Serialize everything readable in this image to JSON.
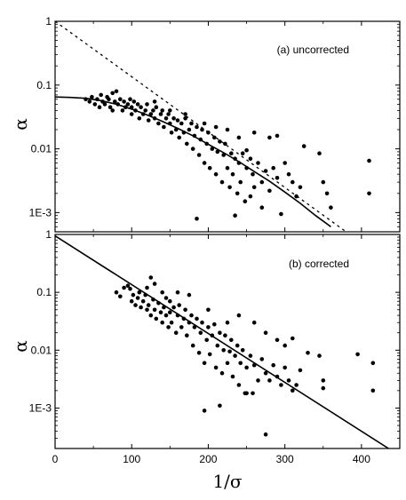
{
  "chart_data": {
    "type": "scatter",
    "xlabel": "1/σ",
    "xlim": [
      0,
      450
    ],
    "x_ticks": [
      {
        "value": 0,
        "label": "0"
      },
      {
        "value": 100,
        "label": "100"
      },
      {
        "value": 200,
        "label": "200"
      },
      {
        "value": 300,
        "label": "300"
      },
      {
        "value": 400,
        "label": "400"
      }
    ],
    "colors": {
      "points": "#000000",
      "lines": "#000000",
      "frame": "#000000"
    },
    "panels": [
      {
        "id": "a",
        "annotation": "(a) uncorrected",
        "ylabel": "α",
        "y_scale": "log",
        "ylim": [
          0.0005,
          1
        ],
        "y_ticks": [
          {
            "value": 1,
            "label": "1"
          },
          {
            "value": 0.1,
            "label": "0.1"
          },
          {
            "value": 0.01,
            "label": "0.01"
          },
          {
            "value": 0.001,
            "label": "1E-3"
          }
        ],
        "solid_curve": {
          "x": [
            0,
            20,
            40,
            60,
            80,
            100,
            120,
            140,
            160,
            180,
            200,
            220,
            240,
            260,
            280,
            300,
            320,
            340,
            360
          ],
          "y": [
            0.065,
            0.064,
            0.062,
            0.057,
            0.05,
            0.042,
            0.034,
            0.027,
            0.021,
            0.016,
            0.0118,
            0.0087,
            0.0063,
            0.0044,
            0.0031,
            0.0021,
            0.0014,
            0.0009,
            0.0006
          ]
        },
        "dashed_line": {
          "x": [
            0,
            380
          ],
          "y": [
            1.0,
            0.0005
          ]
        },
        "points": [
          [
            40,
            0.06
          ],
          [
            45,
            0.055
          ],
          [
            48,
            0.065
          ],
          [
            52,
            0.05
          ],
          [
            55,
            0.06
          ],
          [
            58,
            0.045
          ],
          [
            60,
            0.07
          ],
          [
            62,
            0.055
          ],
          [
            65,
            0.05
          ],
          [
            68,
            0.065
          ],
          [
            70,
            0.06
          ],
          [
            72,
            0.045
          ],
          [
            75,
            0.075
          ],
          [
            75,
            0.04
          ],
          [
            78,
            0.055
          ],
          [
            80,
            0.08
          ],
          [
            82,
            0.05
          ],
          [
            85,
            0.06
          ],
          [
            88,
            0.04
          ],
          [
            90,
            0.055
          ],
          [
            92,
            0.045
          ],
          [
            95,
            0.05
          ],
          [
            98,
            0.06
          ],
          [
            100,
            0.035
          ],
          [
            100,
            0.045
          ],
          [
            103,
            0.055
          ],
          [
            105,
            0.04
          ],
          [
            108,
            0.05
          ],
          [
            110,
            0.03
          ],
          [
            112,
            0.045
          ],
          [
            115,
            0.035
          ],
          [
            118,
            0.04
          ],
          [
            120,
            0.05
          ],
          [
            122,
            0.028
          ],
          [
            125,
            0.035
          ],
          [
            128,
            0.04
          ],
          [
            130,
            0.03
          ],
          [
            132,
            0.045
          ],
          [
            135,
            0.025
          ],
          [
            138,
            0.035
          ],
          [
            140,
            0.04
          ],
          [
            142,
            0.022
          ],
          [
            145,
            0.03
          ],
          [
            148,
            0.035
          ],
          [
            150,
            0.025
          ],
          [
            152,
            0.018
          ],
          [
            155,
            0.03
          ],
          [
            158,
            0.02
          ],
          [
            160,
            0.028
          ],
          [
            162,
            0.015
          ],
          [
            165,
            0.025
          ],
          [
            168,
            0.018
          ],
          [
            170,
            0.03
          ],
          [
            172,
            0.012
          ],
          [
            175,
            0.02
          ],
          [
            178,
            0.025
          ],
          [
            180,
            0.01
          ],
          [
            182,
            0.016
          ],
          [
            185,
            0.022
          ],
          [
            188,
            0.008
          ],
          [
            190,
            0.014
          ],
          [
            192,
            0.02
          ],
          [
            195,
            0.006
          ],
          [
            198,
            0.012
          ],
          [
            200,
            0.018
          ],
          [
            202,
            0.005
          ],
          [
            205,
            0.01
          ],
          [
            208,
            0.015
          ],
          [
            210,
            0.004
          ],
          [
            212,
            0.009
          ],
          [
            215,
            0.013
          ],
          [
            218,
            0.003
          ],
          [
            220,
            0.008
          ],
          [
            222,
            0.012
          ],
          [
            225,
            0.005
          ],
          [
            228,
            0.0025
          ],
          [
            230,
            0.0085
          ],
          [
            232,
            0.004
          ],
          [
            235,
            0.007
          ],
          [
            238,
            0.002
          ],
          [
            240,
            0.006
          ],
          [
            242,
            0.003
          ],
          [
            245,
            0.0085
          ],
          [
            248,
            0.0015
          ],
          [
            250,
            0.005
          ],
          [
            255,
            0.007
          ],
          [
            258,
            0.004
          ],
          [
            260,
            0.0025
          ],
          [
            265,
            0.006
          ],
          [
            270,
            0.003
          ],
          [
            275,
            0.0045
          ],
          [
            280,
            0.0022
          ],
          [
            285,
            0.005
          ],
          [
            290,
            0.0035
          ],
          [
            295,
            0.00095
          ],
          [
            300,
            0.006
          ],
          [
            305,
            0.004
          ],
          [
            310,
            0.003
          ],
          [
            315,
            0.0018
          ],
          [
            320,
            0.0025
          ],
          [
            225,
            0.02
          ],
          [
            240,
            0.015
          ],
          [
            260,
            0.018
          ],
          [
            280,
            0.015
          ],
          [
            290,
            0.016
          ],
          [
            325,
            0.011
          ],
          [
            345,
            0.0085
          ],
          [
            350,
            0.003
          ],
          [
            355,
            0.002
          ],
          [
            360,
            0.0012
          ],
          [
            185,
            0.0008
          ],
          [
            235,
            0.0009
          ],
          [
            255,
            0.0018
          ],
          [
            270,
            0.0012
          ],
          [
            250,
            0.0095
          ],
          [
            210,
            0.022
          ],
          [
            195,
            0.025
          ],
          [
            170,
            0.035
          ],
          [
            150,
            0.04
          ],
          [
            130,
            0.055
          ],
          [
            410,
            0.0065
          ],
          [
            410,
            0.002
          ]
        ]
      },
      {
        "id": "b",
        "annotation": "(b) corrected",
        "ylabel": "α",
        "y_scale": "log",
        "ylim": [
          0.0002,
          1
        ],
        "y_ticks": [
          {
            "value": 1,
            "label": "1"
          },
          {
            "value": 0.1,
            "label": "0.1"
          },
          {
            "value": 0.01,
            "label": "0.01"
          },
          {
            "value": 0.001,
            "label": "1E-3"
          }
        ],
        "solid_line": {
          "x": [
            0,
            450
          ],
          "y": [
            0.95,
            0.00015
          ]
        },
        "points": [
          [
            80,
            0.1
          ],
          [
            85,
            0.085
          ],
          [
            90,
            0.12
          ],
          [
            95,
            0.13
          ],
          [
            98,
            0.115
          ],
          [
            100,
            0.07
          ],
          [
            102,
            0.09
          ],
          [
            105,
            0.06
          ],
          [
            108,
            0.08
          ],
          [
            110,
            0.1
          ],
          [
            112,
            0.055
          ],
          [
            115,
            0.07
          ],
          [
            118,
            0.09
          ],
          [
            120,
            0.05
          ],
          [
            122,
            0.06
          ],
          [
            125,
            0.18
          ],
          [
            125,
            0.04
          ],
          [
            128,
            0.075
          ],
          [
            130,
            0.14
          ],
          [
            130,
            0.05
          ],
          [
            132,
            0.035
          ],
          [
            135,
            0.065
          ],
          [
            138,
            0.045
          ],
          [
            140,
            0.1
          ],
          [
            140,
            0.03
          ],
          [
            142,
            0.055
          ],
          [
            145,
            0.04
          ],
          [
            148,
            0.025
          ],
          [
            150,
            0.07
          ],
          [
            150,
            0.045
          ],
          [
            152,
            0.03
          ],
          [
            155,
            0.055
          ],
          [
            158,
            0.02
          ],
          [
            160,
            0.04
          ],
          [
            162,
            0.06
          ],
          [
            165,
            0.025
          ],
          [
            168,
            0.035
          ],
          [
            170,
            0.05
          ],
          [
            172,
            0.018
          ],
          [
            175,
            0.03
          ],
          [
            178,
            0.04
          ],
          [
            180,
            0.012
          ],
          [
            182,
            0.025
          ],
          [
            185,
            0.035
          ],
          [
            188,
            0.009
          ],
          [
            190,
            0.02
          ],
          [
            192,
            0.03
          ],
          [
            195,
            0.006
          ],
          [
            198,
            0.015
          ],
          [
            200,
            0.025
          ],
          [
            202,
            0.0085
          ],
          [
            205,
            0.018
          ],
          [
            208,
            0.028
          ],
          [
            210,
            0.005
          ],
          [
            212,
            0.012
          ],
          [
            215,
            0.02
          ],
          [
            218,
            0.004
          ],
          [
            220,
            0.01
          ],
          [
            222,
            0.018
          ],
          [
            225,
            0.006
          ],
          [
            228,
            0.0095
          ],
          [
            230,
            0.015
          ],
          [
            232,
            0.0035
          ],
          [
            235,
            0.008
          ],
          [
            238,
            0.012
          ],
          [
            240,
            0.0025
          ],
          [
            242,
            0.006
          ],
          [
            245,
            0.01
          ],
          [
            248,
            0.0018
          ],
          [
            250,
            0.005
          ],
          [
            255,
            0.008
          ],
          [
            258,
            0.0018
          ],
          [
            260,
            0.0055
          ],
          [
            265,
            0.003
          ],
          [
            270,
            0.007
          ],
          [
            275,
            0.004
          ],
          [
            280,
            0.003
          ],
          [
            285,
            0.0055
          ],
          [
            290,
            0.0035
          ],
          [
            295,
            0.0025
          ],
          [
            300,
            0.005
          ],
          [
            305,
            0.003
          ],
          [
            310,
            0.002
          ],
          [
            315,
            0.0025
          ],
          [
            320,
            0.0045
          ],
          [
            240,
            0.04
          ],
          [
            260,
            0.03
          ],
          [
            275,
            0.02
          ],
          [
            290,
            0.015
          ],
          [
            300,
            0.012
          ],
          [
            310,
            0.016
          ],
          [
            330,
            0.009
          ],
          [
            345,
            0.008
          ],
          [
            350,
            0.003
          ],
          [
            350,
            0.0022
          ],
          [
            395,
            0.0085
          ],
          [
            195,
            0.0009
          ],
          [
            215,
            0.0011
          ],
          [
            250,
            0.0018
          ],
          [
            275,
            0.00035
          ],
          [
            415,
            0.006
          ],
          [
            415,
            0.002
          ],
          [
            175,
            0.09
          ],
          [
            160,
            0.1
          ],
          [
            145,
            0.08
          ],
          [
            120,
            0.12
          ],
          [
            200,
            0.05
          ],
          [
            225,
            0.03
          ]
        ]
      }
    ]
  }
}
